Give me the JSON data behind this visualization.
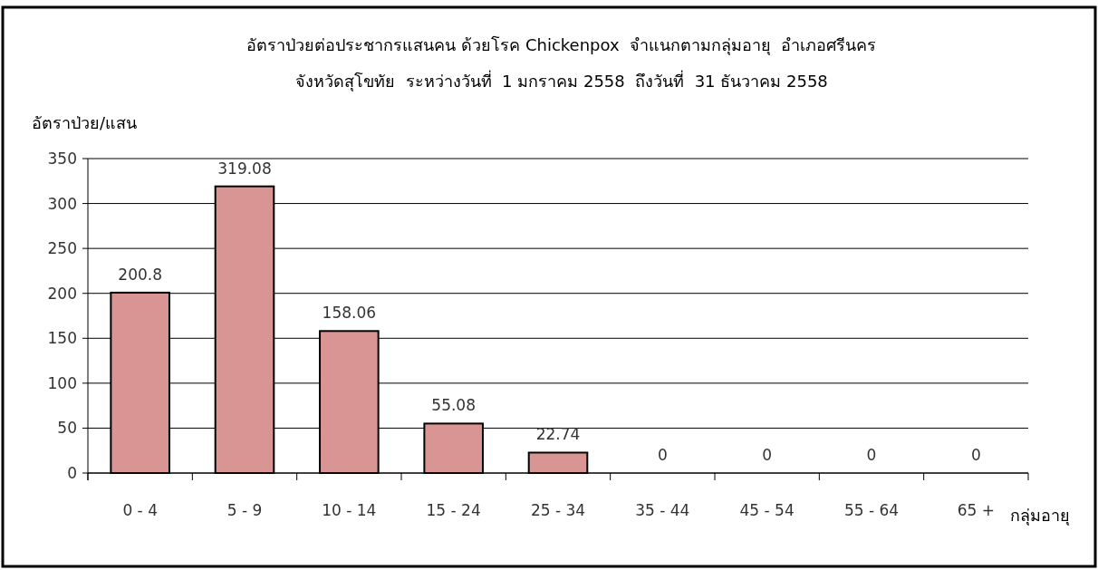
{
  "chart_data": {
    "type": "bar",
    "title": "อัตราป่วยต่อประชากรแสนคน ด้วยโรค Chickenpox  จำแนกตามกลุ่มอายุ  อำเภอศรีนคร",
    "subtitle": "จังหวัดสุโขทัย  ระหว่างวันที่  1 มกราคม 2558  ถึงวันที่  31 ธันวาคม 2558",
    "ylabel": "อัตราป่วย/แสน",
    "xlabel": "กลุ่มอายุ",
    "categories": [
      "0 - 4",
      "5 - 9",
      "10 - 14",
      "15 - 24",
      "25 - 34",
      "35 - 44",
      "45 - 54",
      "55 - 64",
      "65 +"
    ],
    "values": [
      200.8,
      319.08,
      158.06,
      55.08,
      22.74,
      0,
      0,
      0,
      0
    ],
    "color": "#d99594",
    "ylim": [
      0,
      350
    ],
    "yticks": [
      0,
      50,
      100,
      150,
      200,
      250,
      300,
      350
    ],
    "grid": "y",
    "data_labels": true
  }
}
